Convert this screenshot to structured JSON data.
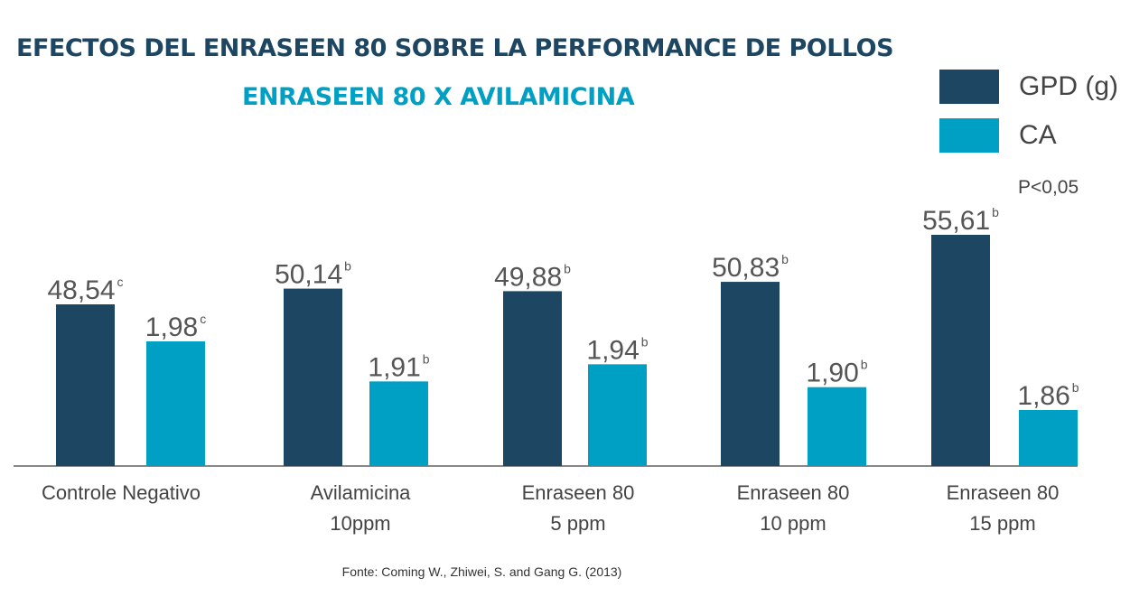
{
  "title": "EFECTOS DEL ENRASEEN 80 SOBRE LA PERFORMANCE DE POLLOS",
  "subtitle": "ENRASEEN 80 X AVILAMICINA",
  "legend": [
    {
      "label": "GPD (g)",
      "color": "#1d4663"
    },
    {
      "label": "CA",
      "color": "#00a0c4"
    }
  ],
  "note": "P<0,05",
  "source": "Fonte: Coming W., Zhiwei, S. and Gang G. (2013)",
  "colors": {
    "title": "#1d4663",
    "subtitle": "#00a0c4",
    "axis": "#888888",
    "label_text": "#555555"
  },
  "chart_data": {
    "type": "bar",
    "categories": [
      [
        "Controle Negativo"
      ],
      [
        "Avilamicina",
        "10ppm"
      ],
      [
        "Enraseen 80",
        "5 ppm"
      ],
      [
        "Enraseen 80",
        "10 ppm"
      ],
      [
        "Enraseen 80",
        "15 ppm"
      ]
    ],
    "series": [
      {
        "name": "GPD (g)",
        "color": "#1d4663",
        "values": [
          48.54,
          50.14,
          49.88,
          50.83,
          55.61
        ],
        "labels": [
          "48,54",
          "50,14",
          "49,88",
          "50,83",
          "55,61"
        ],
        "superscripts": [
          "c",
          "b",
          "b",
          "b",
          "b"
        ]
      },
      {
        "name": "CA",
        "color": "#00a0c4",
        "values": [
          1.98,
          1.91,
          1.94,
          1.9,
          1.86
        ],
        "labels": [
          "1,98",
          "1,91",
          "1,94",
          "1,90",
          "1,86"
        ],
        "superscripts": [
          "c",
          "b",
          "b",
          "b",
          "b"
        ]
      }
    ],
    "legend_position": "top-right",
    "grid": false
  }
}
